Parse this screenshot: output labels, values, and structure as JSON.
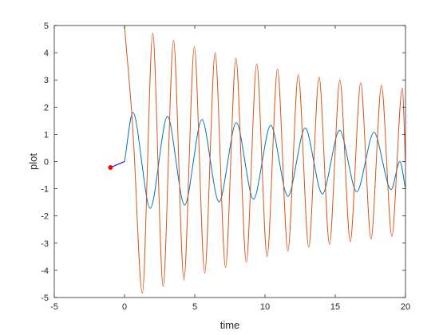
{
  "chart_data": {
    "type": "line",
    "title": "",
    "xlabel": "time",
    "ylabel": "plot",
    "xlim": [
      -5,
      20
    ],
    "ylim": [
      -5,
      5
    ],
    "xticks": [
      -5,
      0,
      5,
      10,
      15,
      20
    ],
    "yticks": [
      -5,
      -4,
      -3,
      -2,
      -1,
      0,
      1,
      2,
      3,
      4,
      5
    ],
    "xtick_labels": [
      "-5",
      "0",
      "5",
      "10",
      "15",
      "20"
    ],
    "ytick_labels": [
      "-5",
      "-4",
      "-3",
      "-2",
      "-1",
      "0",
      "1",
      "2",
      "3",
      "4",
      "5"
    ],
    "grid": false,
    "box": true,
    "series": [
      {
        "color": "#0072bd",
        "description": "damped oscillation with amplitude about 1.8 decaying to about 1.05, period about 2.45",
        "x": [
          0,
          0.6,
          1.22,
          1.83,
          2.45,
          3.06,
          3.67,
          4.28,
          4.9,
          5.51,
          6.12,
          6.73,
          7.35,
          7.96,
          8.57,
          9.18,
          9.8,
          10.41,
          11.02,
          11.63,
          12.25,
          12.86,
          13.47,
          14.08,
          14.7,
          15.31,
          15.92,
          16.53,
          17.15,
          17.76,
          18.37,
          18.98,
          19.6,
          20
        ],
        "y": [
          0,
          1.8,
          0,
          -1.72,
          0,
          1.66,
          0,
          -1.6,
          0,
          1.54,
          0,
          -1.48,
          0,
          1.43,
          0,
          -1.38,
          0,
          1.33,
          0,
          -1.28,
          0,
          1.23,
          0,
          -1.19,
          0,
          1.15,
          0,
          -1.11,
          0,
          1.07,
          0,
          -1.03,
          0,
          -1.0
        ]
      },
      {
        "color": "#d95319",
        "description": "oscillation starting near 5 with decaying amplitude about 4.8 to 3.1, period about 1.74",
        "x": [
          0,
          0.72,
          1.27,
          1.64,
          2.01,
          2.38,
          2.75,
          3.12,
          3.49,
          3.86,
          4.23,
          4.6,
          4.97,
          5.34,
          5.71,
          6.08,
          6.45,
          6.82,
          7.19,
          7.56,
          7.93,
          8.3,
          8.67,
          9.04,
          9.41,
          9.78,
          10.15,
          10.52,
          10.89,
          11.26,
          11.63,
          12,
          12.37,
          12.74,
          13.11,
          13.48,
          13.85,
          14.22,
          14.59,
          14.96,
          15.33,
          15.7,
          16.07,
          16.44,
          16.81,
          17.18,
          17.55,
          17.92,
          18.29,
          18.66,
          19.03,
          19.4,
          19.77,
          20
        ],
        "y": [
          5.0,
          0,
          -4.85,
          0,
          4.72,
          0,
          -4.6,
          0,
          4.46,
          0,
          -4.35,
          0,
          4.22,
          0,
          -4.1,
          0,
          4.0,
          0,
          -3.9,
          0,
          3.8,
          0,
          -3.7,
          0,
          3.6,
          0,
          -3.5,
          0,
          3.4,
          0,
          -3.3,
          0,
          3.2,
          0,
          -3.15,
          0,
          3.1,
          0,
          -3.05,
          0,
          3.0,
          0,
          -2.95,
          0,
          2.9,
          0,
          -2.85,
          0,
          2.8,
          0,
          -2.75,
          0,
          2.7,
          -0.1
        ]
      },
      {
        "color": "#0000ff",
        "description": "short blue segment from red marker to origin",
        "x": [
          -1,
          0
        ],
        "y": [
          -0.22,
          0
        ]
      }
    ],
    "markers": [
      {
        "color": "#ff0000",
        "x": -1,
        "y": -0.22
      }
    ]
  }
}
